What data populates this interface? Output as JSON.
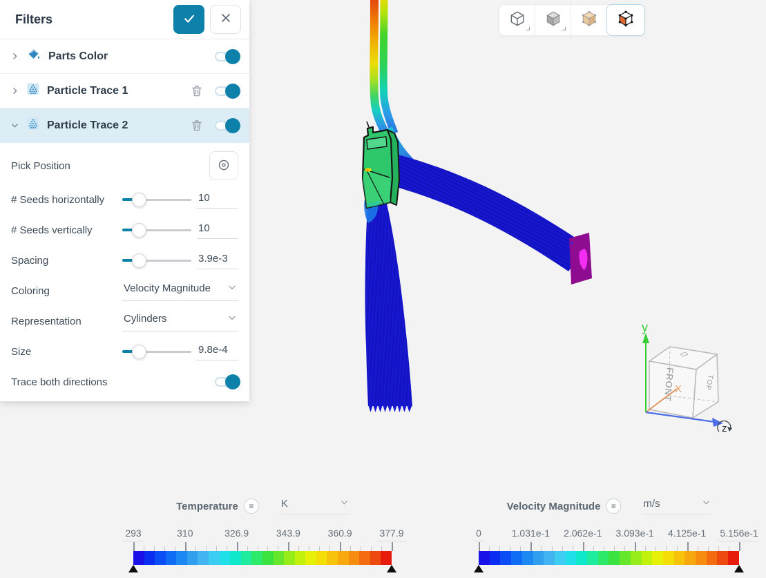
{
  "colors": {
    "accent": "#0e81ab",
    "active_row_bg": "#ddedf6",
    "stream_blue": "#1717d0",
    "part_green": "#2fc76b",
    "fan_magenta": "#8d0c90",
    "axis_y_green": "#35cf35",
    "axis_z_blue": "#4a6de8",
    "axis_x_orange": "#e2945c"
  },
  "panel": {
    "title": "Filters",
    "filters": [
      {
        "label": "Parts Color",
        "icon": "paint-bucket-icon",
        "expanded": false,
        "enabled": true,
        "deletable": false
      },
      {
        "label": "Particle Trace 1",
        "icon": "particle-trace-icon",
        "expanded": false,
        "enabled": true,
        "deletable": true
      },
      {
        "label": "Particle Trace 2",
        "icon": "particle-trace-icon",
        "expanded": true,
        "enabled": true,
        "deletable": true,
        "active": true
      }
    ],
    "settings": {
      "pick_position": {
        "label": "Pick Position"
      },
      "seeds_h": {
        "label": "# Seeds horizontally",
        "value": "10"
      },
      "seeds_v": {
        "label": "# Seeds vertically",
        "value": "10"
      },
      "spacing": {
        "label": "Spacing",
        "value": "3.9e-3"
      },
      "coloring": {
        "label": "Coloring",
        "value": "Velocity Magnitude"
      },
      "representation": {
        "label": "Representation",
        "value": "Cylinders"
      },
      "size": {
        "label": "Size",
        "value": "9.8e-4"
      },
      "trace_both": {
        "label": "Trace both directions",
        "enabled": true
      }
    }
  },
  "toolbar": {
    "modes": [
      {
        "name": "wireframe-cube-view",
        "selected": false
      },
      {
        "name": "solid-cube-view",
        "selected": false
      },
      {
        "name": "textured-cube-view",
        "selected": false
      },
      {
        "name": "highlight-face-view",
        "selected": true
      }
    ]
  },
  "viewport": {
    "gizmo": {
      "x_label": "X",
      "y_label": "y",
      "z_label": "z",
      "front_label": "FRONT",
      "top_label": "TOP"
    }
  },
  "legends": [
    {
      "title": "Temperature",
      "unit": "K",
      "ticks": [
        "293",
        "310",
        "326.9",
        "343.9",
        "360.9",
        "377.9"
      ]
    },
    {
      "title": "Velocity Magnitude",
      "unit": "m/s",
      "ticks": [
        "0",
        "1.031e-1",
        "2.062e-1",
        "3.093e-1",
        "4.125e-1",
        "5.156e-1"
      ]
    }
  ],
  "colormap": [
    "#1a11e8",
    "#0b2df2",
    "#0b4ef6",
    "#0f6df5",
    "#1c88f2",
    "#2f9fee",
    "#42b4f0",
    "#3ecdf2",
    "#21dfe8",
    "#10e8cc",
    "#1fec9e",
    "#2dea6b",
    "#3ce23f",
    "#66e72b",
    "#97ed1a",
    "#c3f10e",
    "#e7f007",
    "#f5dd06",
    "#f7c40b",
    "#f7a90e",
    "#f68d10",
    "#f36d10",
    "#ee490e",
    "#e71b0b"
  ]
}
